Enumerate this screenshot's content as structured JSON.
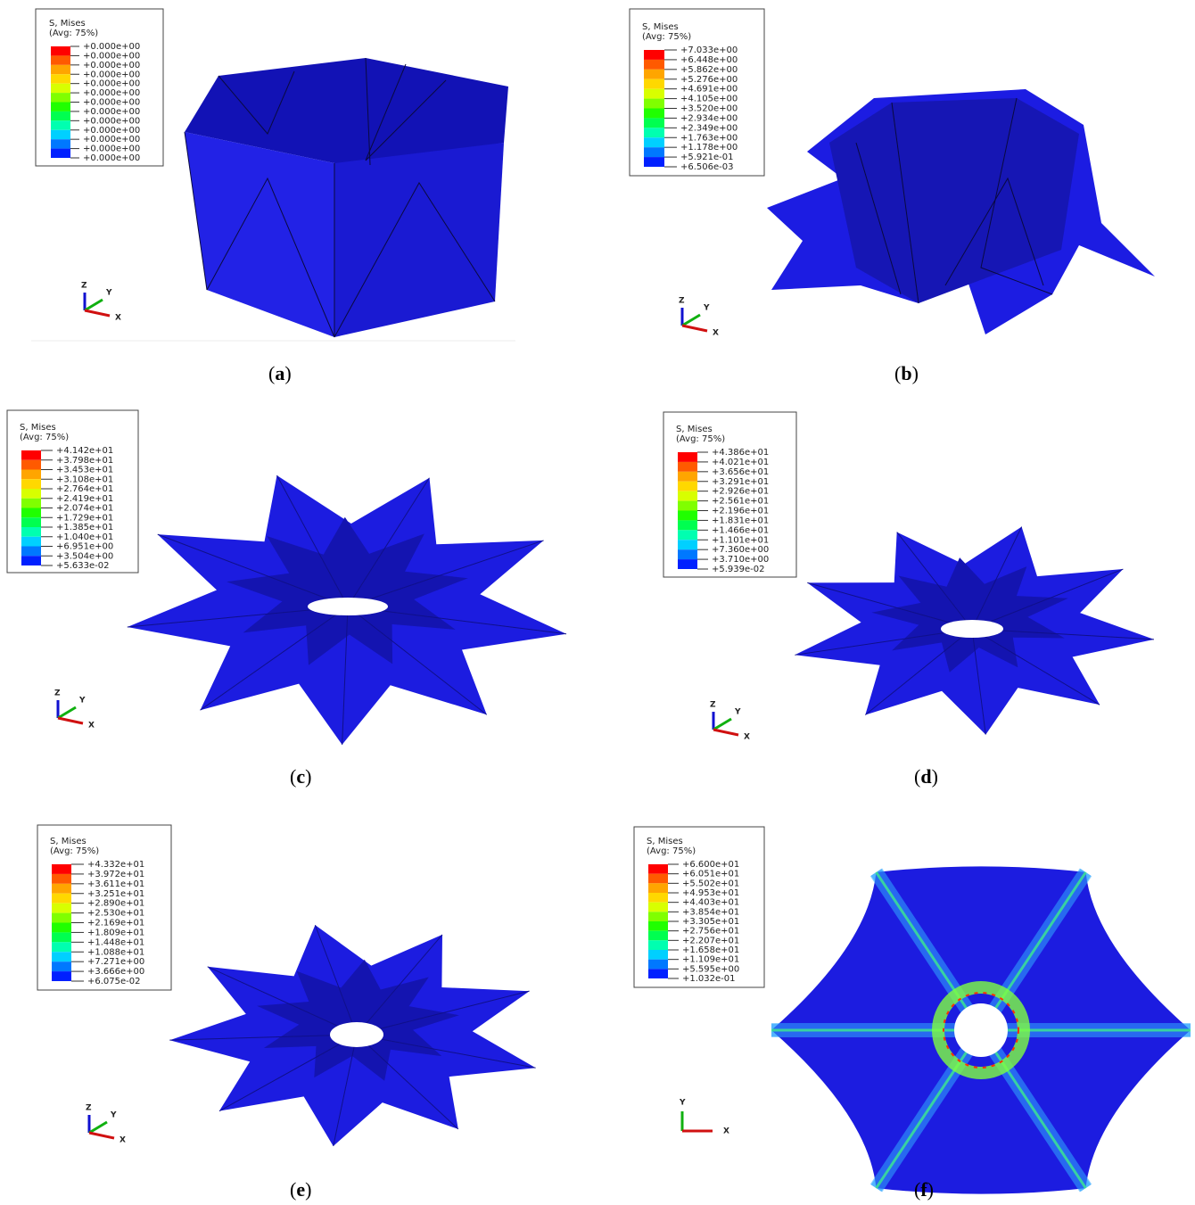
{
  "panels": [
    {
      "legend_title": "S, Mises",
      "legend_subtitle": "(Avg: 75%)",
      "legend_values": [
        "+0.000e+00",
        "+0.000e+00",
        "+0.000e+00",
        "+0.000e+00",
        "+0.000e+00",
        "+0.000e+00",
        "+0.000e+00",
        "+0.000e+00",
        "+0.000e+00",
        "+0.000e+00",
        "+0.000e+00",
        "+0.000e+00",
        "+0.000e+00"
      ],
      "axes": [
        "Z",
        "Y",
        "X"
      ],
      "caption": [
        "(",
        "a",
        ")"
      ]
    },
    {
      "legend_title": "S, Mises",
      "legend_subtitle": "(Avg: 75%)",
      "legend_values": [
        "+7.033e+00",
        "+6.448e+00",
        "+5.862e+00",
        "+5.276e+00",
        "+4.691e+00",
        "+4.105e+00",
        "+3.520e+00",
        "+2.934e+00",
        "+2.349e+00",
        "+1.763e+00",
        "+1.178e+00",
        "+5.921e-01",
        "+6.506e-03"
      ],
      "axes": [
        "Z",
        "Y",
        "X"
      ],
      "caption": [
        "(",
        "b",
        ")"
      ]
    },
    {
      "legend_title": "S, Mises",
      "legend_subtitle": "(Avg: 75%)",
      "legend_values": [
        "+4.142e+01",
        "+3.798e+01",
        "+3.453e+01",
        "+3.108e+01",
        "+2.764e+01",
        "+2.419e+01",
        "+2.074e+01",
        "+1.729e+01",
        "+1.385e+01",
        "+1.040e+01",
        "+6.951e+00",
        "+3.504e+00",
        "+5.633e-02"
      ],
      "axes": [
        "Z",
        "Y",
        "X"
      ],
      "caption": [
        "(",
        "c",
        ")"
      ]
    },
    {
      "legend_title": "S, Mises",
      "legend_subtitle": "(Avg: 75%)",
      "legend_values": [
        "+4.386e+01",
        "+4.021e+01",
        "+3.656e+01",
        "+3.291e+01",
        "+2.926e+01",
        "+2.561e+01",
        "+2.196e+01",
        "+1.831e+01",
        "+1.466e+01",
        "+1.101e+01",
        "+7.360e+00",
        "+3.710e+00",
        "+5.939e-02"
      ],
      "axes": [
        "Z",
        "Y",
        "X"
      ],
      "caption": [
        "(",
        "d",
        ")"
      ]
    },
    {
      "legend_title": "S, Mises",
      "legend_subtitle": "(Avg: 75%)",
      "legend_values": [
        "+4.332e+01",
        "+3.972e+01",
        "+3.611e+01",
        "+3.251e+01",
        "+2.890e+01",
        "+2.530e+01",
        "+2.169e+01",
        "+1.809e+01",
        "+1.448e+01",
        "+1.088e+01",
        "+7.271e+00",
        "+3.666e+00",
        "+6.075e-02"
      ],
      "axes": [
        "Z",
        "Y",
        "X"
      ],
      "caption": [
        "(",
        "e",
        ")"
      ]
    },
    {
      "legend_title": "S, Mises",
      "legend_subtitle": "(Avg: 75%)",
      "legend_values": [
        "+6.600e+01",
        "+6.051e+01",
        "+5.502e+01",
        "+4.953e+01",
        "+4.403e+01",
        "+3.854e+01",
        "+3.305e+01",
        "+2.756e+01",
        "+2.207e+01",
        "+1.658e+01",
        "+1.109e+01",
        "+5.595e+00",
        "+1.032e-01"
      ],
      "axes": [
        "Y",
        "X"
      ],
      "caption": [
        "(",
        "f",
        ")"
      ]
    }
  ]
}
